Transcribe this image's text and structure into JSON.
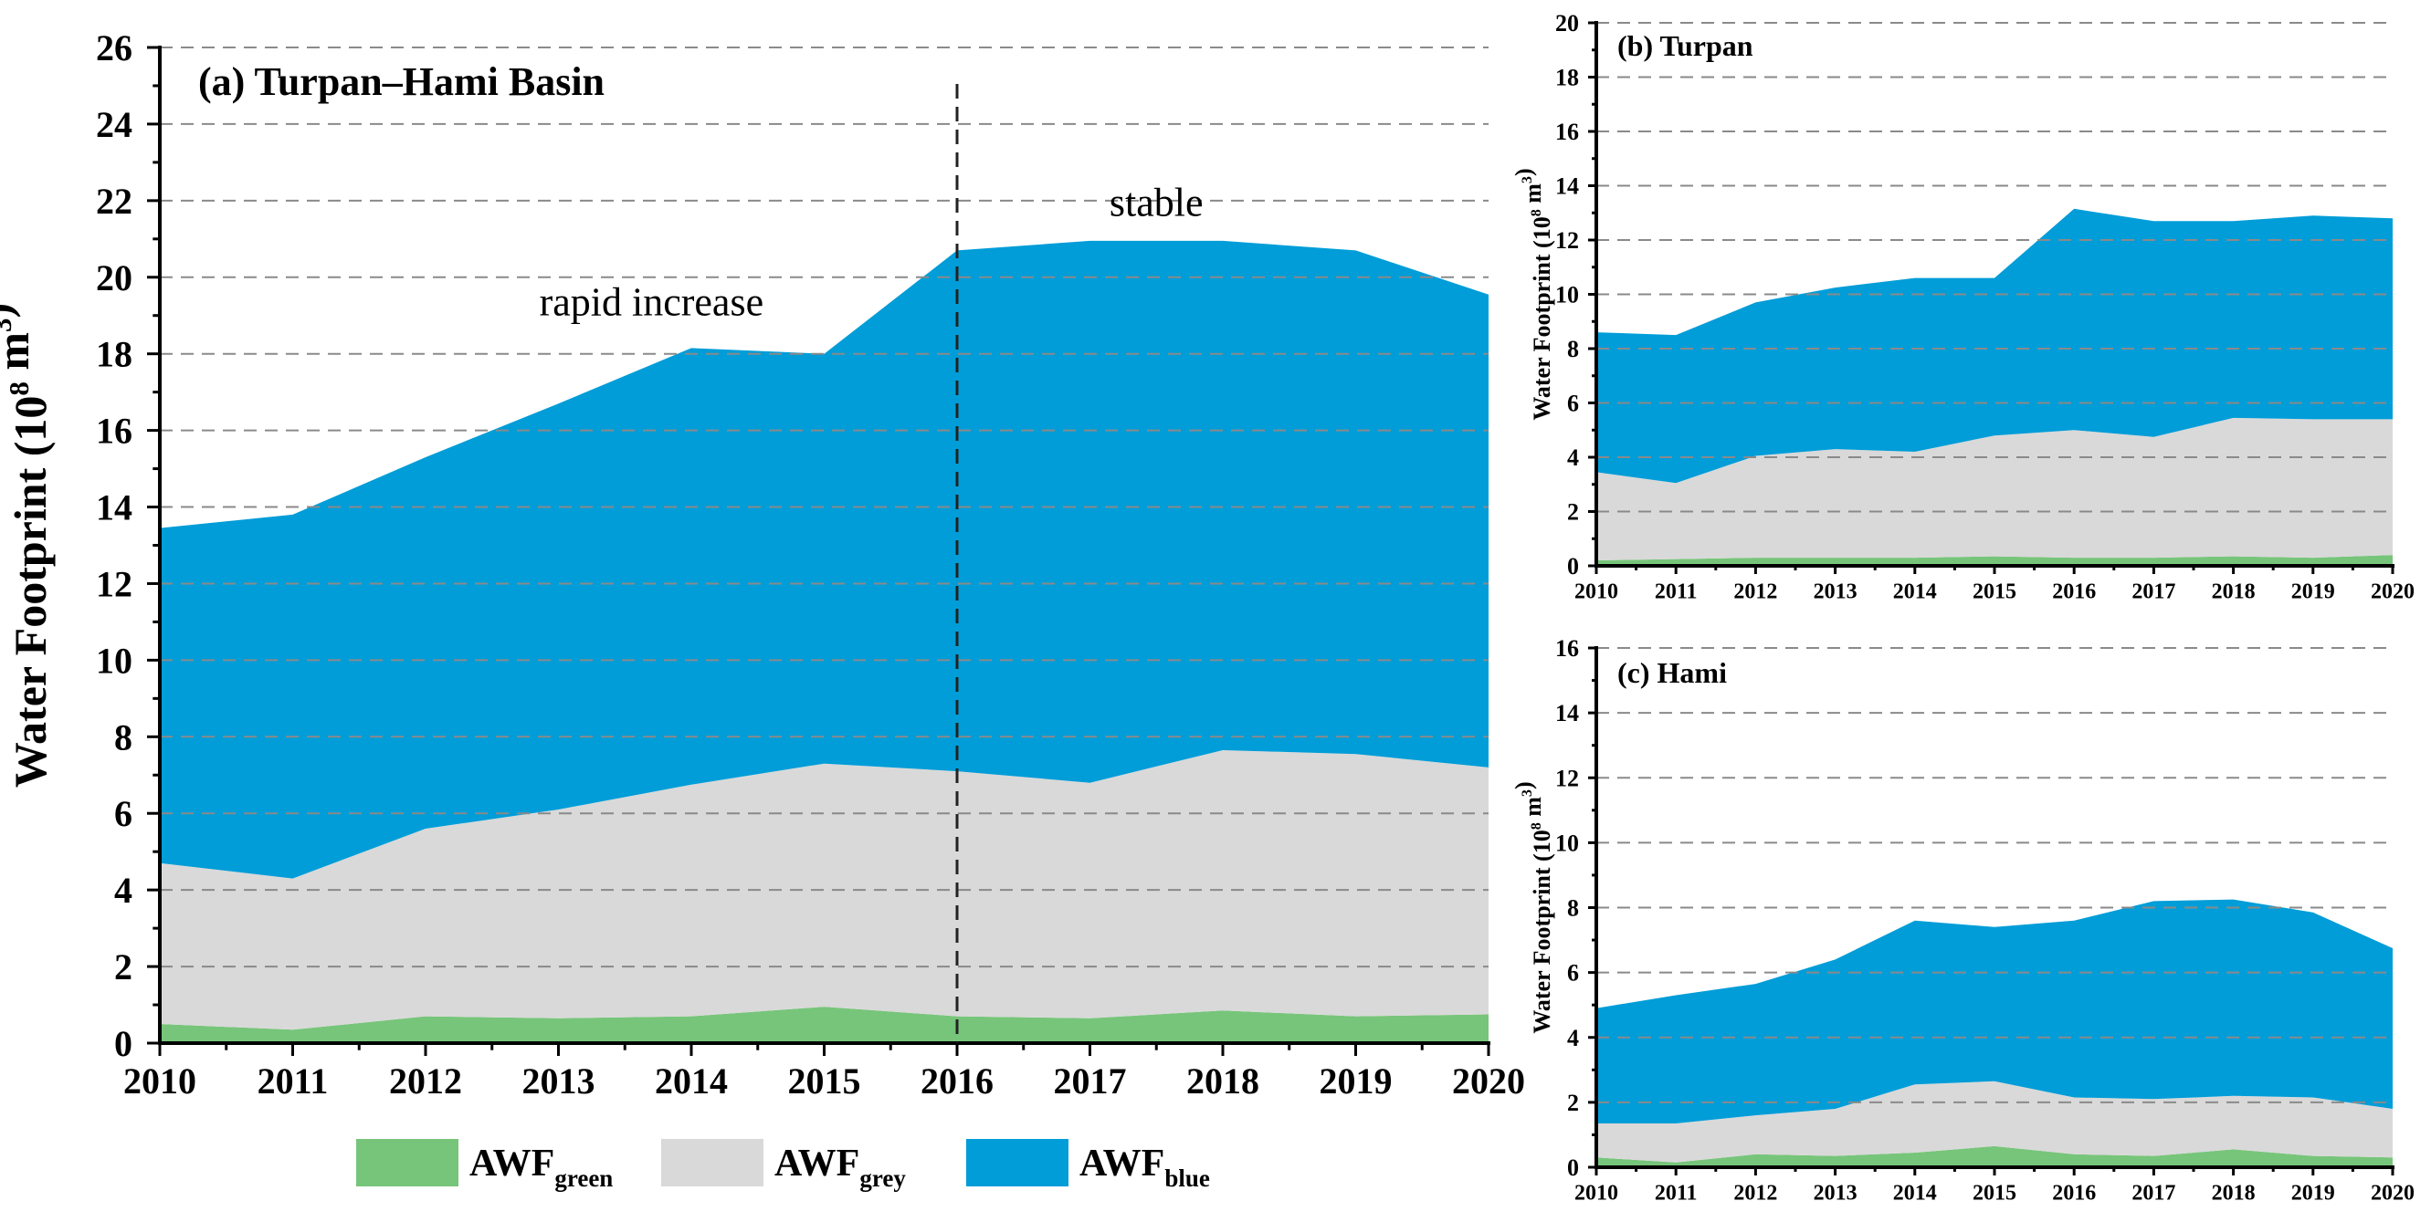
{
  "chart_data": [
    {
      "id": "a",
      "type": "area",
      "stacked": true,
      "title": "(a) Turpan–Hami Basin",
      "xlabel": "",
      "ylabel": "Water Footprint (10",
      "ylabel_sup": "8",
      "ylabel_unit": " m",
      "ylabel_sup2": "3",
      "ylabel_close": ")",
      "x": [
        2010,
        2011,
        2012,
        2013,
        2014,
        2015,
        2016,
        2017,
        2018,
        2019,
        2020
      ],
      "ylim": [
        0,
        26
      ],
      "yticks": [
        0,
        2,
        4,
        6,
        8,
        10,
        12,
        14,
        16,
        18,
        20,
        22,
        24,
        26
      ],
      "grid": true,
      "series": [
        {
          "name": "AWF_green",
          "color": "#77c57a",
          "values": [
            0.5,
            0.35,
            0.7,
            0.65,
            0.7,
            0.95,
            0.7,
            0.65,
            0.85,
            0.7,
            0.75
          ]
        },
        {
          "name": "AWF_grey",
          "color": "#d9d9d9",
          "values": [
            4.2,
            3.95,
            4.9,
            5.45,
            6.05,
            6.35,
            6.4,
            6.15,
            6.8,
            6.85,
            6.45
          ]
        },
        {
          "name": "AWF_blue",
          "color": "#009dd8",
          "values": [
            8.75,
            9.5,
            9.7,
            10.6,
            11.4,
            10.7,
            13.6,
            14.15,
            13.3,
            13.15,
            12.35
          ]
        }
      ],
      "annotations": [
        {
          "text": "rapid increase",
          "x": 2013.7,
          "y": 19.0
        },
        {
          "text": "stable",
          "x": 2017.5,
          "y": 21.6
        }
      ],
      "vline": {
        "x": 2016,
        "style": "dashed"
      }
    },
    {
      "id": "b",
      "type": "area",
      "stacked": true,
      "title": "(b) Turpan",
      "ylabel": "Water Footprint (10",
      "ylabel_sup": "8",
      "ylabel_unit": " m",
      "ylabel_sup2": "3",
      "ylabel_close": ")",
      "x": [
        2010,
        2011,
        2012,
        2013,
        2014,
        2015,
        2016,
        2017,
        2018,
        2019,
        2020
      ],
      "ylim": [
        0,
        20
      ],
      "yticks": [
        0,
        2,
        4,
        6,
        8,
        10,
        12,
        14,
        16,
        18,
        20
      ],
      "grid": true,
      "series": [
        {
          "name": "AWF_green",
          "color": "#77c57a",
          "values": [
            0.2,
            0.25,
            0.3,
            0.3,
            0.3,
            0.35,
            0.3,
            0.3,
            0.35,
            0.3,
            0.4
          ]
        },
        {
          "name": "AWF_grey",
          "color": "#d9d9d9",
          "values": [
            3.25,
            2.8,
            3.75,
            4.0,
            3.9,
            4.45,
            4.7,
            4.45,
            5.1,
            5.1,
            5.0
          ]
        },
        {
          "name": "AWF_blue",
          "color": "#009dd8",
          "values": [
            5.15,
            5.45,
            5.65,
            5.95,
            6.4,
            5.8,
            8.15,
            7.95,
            7.25,
            7.5,
            7.4
          ]
        }
      ]
    },
    {
      "id": "c",
      "type": "area",
      "stacked": true,
      "title": "(c) Hami",
      "ylabel": "Water Footprint (10",
      "ylabel_sup": "8",
      "ylabel_unit": " m",
      "ylabel_sup2": "3",
      "ylabel_close": ")",
      "x": [
        2010,
        2011,
        2012,
        2013,
        2014,
        2015,
        2016,
        2017,
        2018,
        2019,
        2020
      ],
      "ylim": [
        0,
        16
      ],
      "yticks": [
        0,
        2,
        4,
        6,
        8,
        10,
        12,
        14,
        16
      ],
      "grid": true,
      "series": [
        {
          "name": "AWF_green",
          "color": "#77c57a",
          "values": [
            0.3,
            0.15,
            0.4,
            0.35,
            0.45,
            0.65,
            0.4,
            0.35,
            0.55,
            0.35,
            0.3
          ]
        },
        {
          "name": "AWF_grey",
          "color": "#d9d9d9",
          "values": [
            1.05,
            1.2,
            1.2,
            1.45,
            2.1,
            2.0,
            1.75,
            1.75,
            1.65,
            1.8,
            1.5
          ]
        },
        {
          "name": "AWF_blue",
          "color": "#009dd8",
          "values": [
            3.55,
            3.95,
            4.05,
            4.6,
            5.05,
            4.75,
            5.45,
            6.1,
            6.05,
            5.7,
            4.95
          ]
        }
      ]
    }
  ],
  "legend": {
    "placement": "bottom-center",
    "items": [
      {
        "base": "AWF",
        "sub": "green",
        "color": "#77c57a"
      },
      {
        "base": "AWF",
        "sub": "grey",
        "color": "#d9d9d9"
      },
      {
        "base": "AWF",
        "sub": "blue",
        "color": "#009dd8"
      }
    ]
  }
}
